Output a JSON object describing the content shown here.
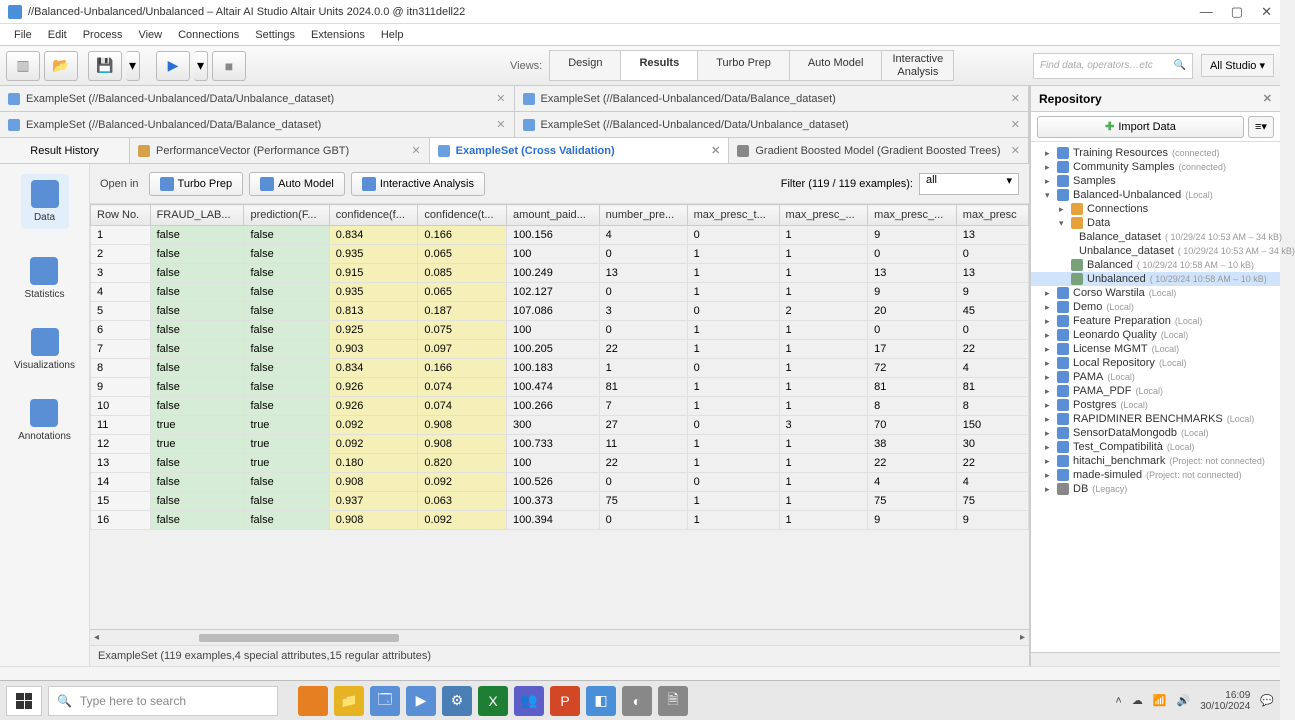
{
  "window": {
    "title": "//Balanced-Unbalanced/Unbalanced – Altair AI Studio Altair Units 2024.0.0 @ itn311dell22"
  },
  "menu": [
    "File",
    "Edit",
    "Process",
    "View",
    "Connections",
    "Settings",
    "Extensions",
    "Help"
  ],
  "toolbar": {
    "views_label": "Views:",
    "views": [
      "Design",
      "Results",
      "Turbo Prep",
      "Auto Model",
      "Interactive Analysis"
    ],
    "active_view": "Results",
    "search_placeholder": "Find data, operators…etc",
    "all_studio": "All Studio ▾"
  },
  "top_tabs_row1": [
    {
      "label": "ExampleSet (//Balanced-Unbalanced/Data/Unbalance_dataset)",
      "icon": "data"
    },
    {
      "label": "ExampleSet (//Balanced-Unbalanced/Data/Balance_dataset)",
      "icon": "data"
    }
  ],
  "top_tabs_row2": [
    {
      "label": "ExampleSet (//Balanced-Unbalanced/Data/Balance_dataset)",
      "icon": "data"
    },
    {
      "label": "ExampleSet (//Balanced-Unbalanced/Data/Unbalance_dataset)",
      "icon": "data"
    }
  ],
  "top_tabs_row3": {
    "history": "Result History",
    "tabs": [
      {
        "label": "PerformanceVector (Performance GBT)",
        "icon": "perf"
      },
      {
        "label": "ExampleSet (Cross Validation)",
        "icon": "data",
        "active": true
      },
      {
        "label": "Gradient Boosted Model (Gradient Boosted Trees)",
        "icon": "gbt"
      }
    ]
  },
  "side_nav": [
    "Data",
    "Statistics",
    "Visualizations",
    "Annotations"
  ],
  "side_active": "Data",
  "table_toolbar": {
    "open_in": "Open in",
    "buttons": [
      "Turbo Prep",
      "Auto Model",
      "Interactive Analysis"
    ],
    "filter_label": "Filter (119 / 119 examples):",
    "filter_value": "all"
  },
  "columns": [
    "Row No.",
    "FRAUD_LAB...",
    "prediction(F...",
    "confidence(f...",
    "confidence(t...",
    "amount_paid...",
    "number_pre...",
    "max_presc_t...",
    "max_presc_...",
    "max_presc_...",
    "max_presc"
  ],
  "col_classes": [
    "col-row",
    "col-label",
    "col-pred",
    "col-conf",
    "col-conf",
    "",
    "",
    "",
    "",
    "",
    ""
  ],
  "rows": [
    [
      "1",
      "false",
      "false",
      "0.834",
      "0.166",
      "100.156",
      "4",
      "0",
      "1",
      "9",
      "13"
    ],
    [
      "2",
      "false",
      "false",
      "0.935",
      "0.065",
      "100",
      "0",
      "1",
      "1",
      "0",
      "0"
    ],
    [
      "3",
      "false",
      "false",
      "0.915",
      "0.085",
      "100.249",
      "13",
      "1",
      "1",
      "13",
      "13"
    ],
    [
      "4",
      "false",
      "false",
      "0.935",
      "0.065",
      "102.127",
      "0",
      "1",
      "1",
      "9",
      "9"
    ],
    [
      "5",
      "false",
      "false",
      "0.813",
      "0.187",
      "107.086",
      "3",
      "0",
      "2",
      "20",
      "45"
    ],
    [
      "6",
      "false",
      "false",
      "0.925",
      "0.075",
      "100",
      "0",
      "1",
      "1",
      "0",
      "0"
    ],
    [
      "7",
      "false",
      "false",
      "0.903",
      "0.097",
      "100.205",
      "22",
      "1",
      "1",
      "17",
      "22"
    ],
    [
      "8",
      "false",
      "false",
      "0.834",
      "0.166",
      "100.183",
      "1",
      "0",
      "1",
      "72",
      "4"
    ],
    [
      "9",
      "false",
      "false",
      "0.926",
      "0.074",
      "100.474",
      "81",
      "1",
      "1",
      "81",
      "81"
    ],
    [
      "10",
      "false",
      "false",
      "0.926",
      "0.074",
      "100.266",
      "7",
      "1",
      "1",
      "8",
      "8"
    ],
    [
      "11",
      "true",
      "true",
      "0.092",
      "0.908",
      "300",
      "27",
      "0",
      "3",
      "70",
      "150"
    ],
    [
      "12",
      "true",
      "true",
      "0.092",
      "0.908",
      "100.733",
      "11",
      "1",
      "1",
      "38",
      "30"
    ],
    [
      "13",
      "false",
      "true",
      "0.180",
      "0.820",
      "100",
      "22",
      "1",
      "1",
      "22",
      "22"
    ],
    [
      "14",
      "false",
      "false",
      "0.908",
      "0.092",
      "100.526",
      "0",
      "0",
      "1",
      "4",
      "4"
    ],
    [
      "15",
      "false",
      "false",
      "0.937",
      "0.063",
      "100.373",
      "75",
      "1",
      "1",
      "75",
      "75"
    ],
    [
      "16",
      "false",
      "false",
      "0.908",
      "0.092",
      "100.394",
      "0",
      "1",
      "1",
      "9",
      "9"
    ]
  ],
  "status_text": "ExampleSet (119 examples,4 special attributes,15 regular attributes)",
  "repo": {
    "title": "Repository",
    "import": "Import Data",
    "tree": [
      {
        "ind": 1,
        "toggle": "▸",
        "icon": "ni-repo",
        "label": "Training Resources",
        "meta": "(connected)"
      },
      {
        "ind": 1,
        "toggle": "▸",
        "icon": "ni-repo",
        "label": "Community Samples",
        "meta": "(connected)"
      },
      {
        "ind": 1,
        "toggle": "▸",
        "icon": "ni-repo",
        "label": "Samples",
        "meta": ""
      },
      {
        "ind": 1,
        "toggle": "▾",
        "icon": "ni-repo",
        "label": "Balanced-Unbalanced",
        "meta": "(Local)"
      },
      {
        "ind": 2,
        "toggle": "▸",
        "icon": "ni-folder",
        "label": "Connections",
        "meta": ""
      },
      {
        "ind": 2,
        "toggle": "▾",
        "icon": "ni-folder-open",
        "label": "Data",
        "meta": ""
      },
      {
        "ind": 3,
        "toggle": "",
        "icon": "ni-data",
        "label": "Balance_dataset",
        "meta": "( 10/29/24 10:53 AM – 34 kB)"
      },
      {
        "ind": 3,
        "toggle": "",
        "icon": "ni-data",
        "label": "Unbalance_dataset",
        "meta": "( 10/29/24 10:53 AM – 34 kB)"
      },
      {
        "ind": 2,
        "toggle": "",
        "icon": "ni-proc",
        "label": "Balanced",
        "meta": "( 10/29/24 10:58 AM – 10 kB)"
      },
      {
        "ind": 2,
        "toggle": "",
        "icon": "ni-proc",
        "label": "Unbalanced",
        "meta": "( 10/29/24 10:58 AM – 10 kB)",
        "selected": true
      },
      {
        "ind": 1,
        "toggle": "▸",
        "icon": "ni-repo",
        "label": "Corso Warstila",
        "meta": "(Local)"
      },
      {
        "ind": 1,
        "toggle": "▸",
        "icon": "ni-repo",
        "label": "Demo",
        "meta": "(Local)"
      },
      {
        "ind": 1,
        "toggle": "▸",
        "icon": "ni-repo",
        "label": "Feature Preparation",
        "meta": "(Local)"
      },
      {
        "ind": 1,
        "toggle": "▸",
        "icon": "ni-repo",
        "label": "Leonardo Quality",
        "meta": "(Local)"
      },
      {
        "ind": 1,
        "toggle": "▸",
        "icon": "ni-repo",
        "label": "License MGMT",
        "meta": "(Local)"
      },
      {
        "ind": 1,
        "toggle": "▸",
        "icon": "ni-repo",
        "label": "Local Repository",
        "meta": "(Local)"
      },
      {
        "ind": 1,
        "toggle": "▸",
        "icon": "ni-repo",
        "label": "PAMA",
        "meta": "(Local)"
      },
      {
        "ind": 1,
        "toggle": "▸",
        "icon": "ni-repo",
        "label": "PAMA_PDF",
        "meta": "(Local)"
      },
      {
        "ind": 1,
        "toggle": "▸",
        "icon": "ni-repo",
        "label": "Postgres",
        "meta": "(Local)"
      },
      {
        "ind": 1,
        "toggle": "▸",
        "icon": "ni-repo",
        "label": "RAPIDMINER BENCHMARKS",
        "meta": "(Local)"
      },
      {
        "ind": 1,
        "toggle": "▸",
        "icon": "ni-repo",
        "label": "SensorDataMongodb",
        "meta": "(Local)"
      },
      {
        "ind": 1,
        "toggle": "▸",
        "icon": "ni-repo",
        "label": "Test_Compatibilità",
        "meta": "(Local)"
      },
      {
        "ind": 1,
        "toggle": "▸",
        "icon": "ni-repo",
        "label": "hitachi_benchmark",
        "meta": "(Project: not connected)"
      },
      {
        "ind": 1,
        "toggle": "▸",
        "icon": "ni-repo",
        "label": "made-simuled",
        "meta": "(Project: not connected)"
      },
      {
        "ind": 1,
        "toggle": "▸",
        "icon": "ni-db",
        "label": "DB",
        "meta": "(Legacy)"
      }
    ]
  },
  "taskbar": {
    "search": "Type here to search",
    "icons": [
      {
        "bg": "#e67e22",
        "char": ""
      },
      {
        "bg": "#e6b422",
        "char": "📁"
      },
      {
        "bg": "#5a8fd6",
        "char": "🗔"
      },
      {
        "bg": "#5a8fd6",
        "char": "▶"
      },
      {
        "bg": "#4a7fb5",
        "char": "⚙"
      },
      {
        "bg": "#1e7e34",
        "char": "X"
      },
      {
        "bg": "#5b5fc7",
        "char": "👥"
      },
      {
        "bg": "#d24726",
        "char": "P"
      },
      {
        "bg": "#4a90d9",
        "char": "◧"
      },
      {
        "bg": "#888",
        "char": "◐"
      },
      {
        "bg": "#888",
        "char": "🗎"
      }
    ],
    "time": "16:09",
    "date": "30/10/2024"
  }
}
